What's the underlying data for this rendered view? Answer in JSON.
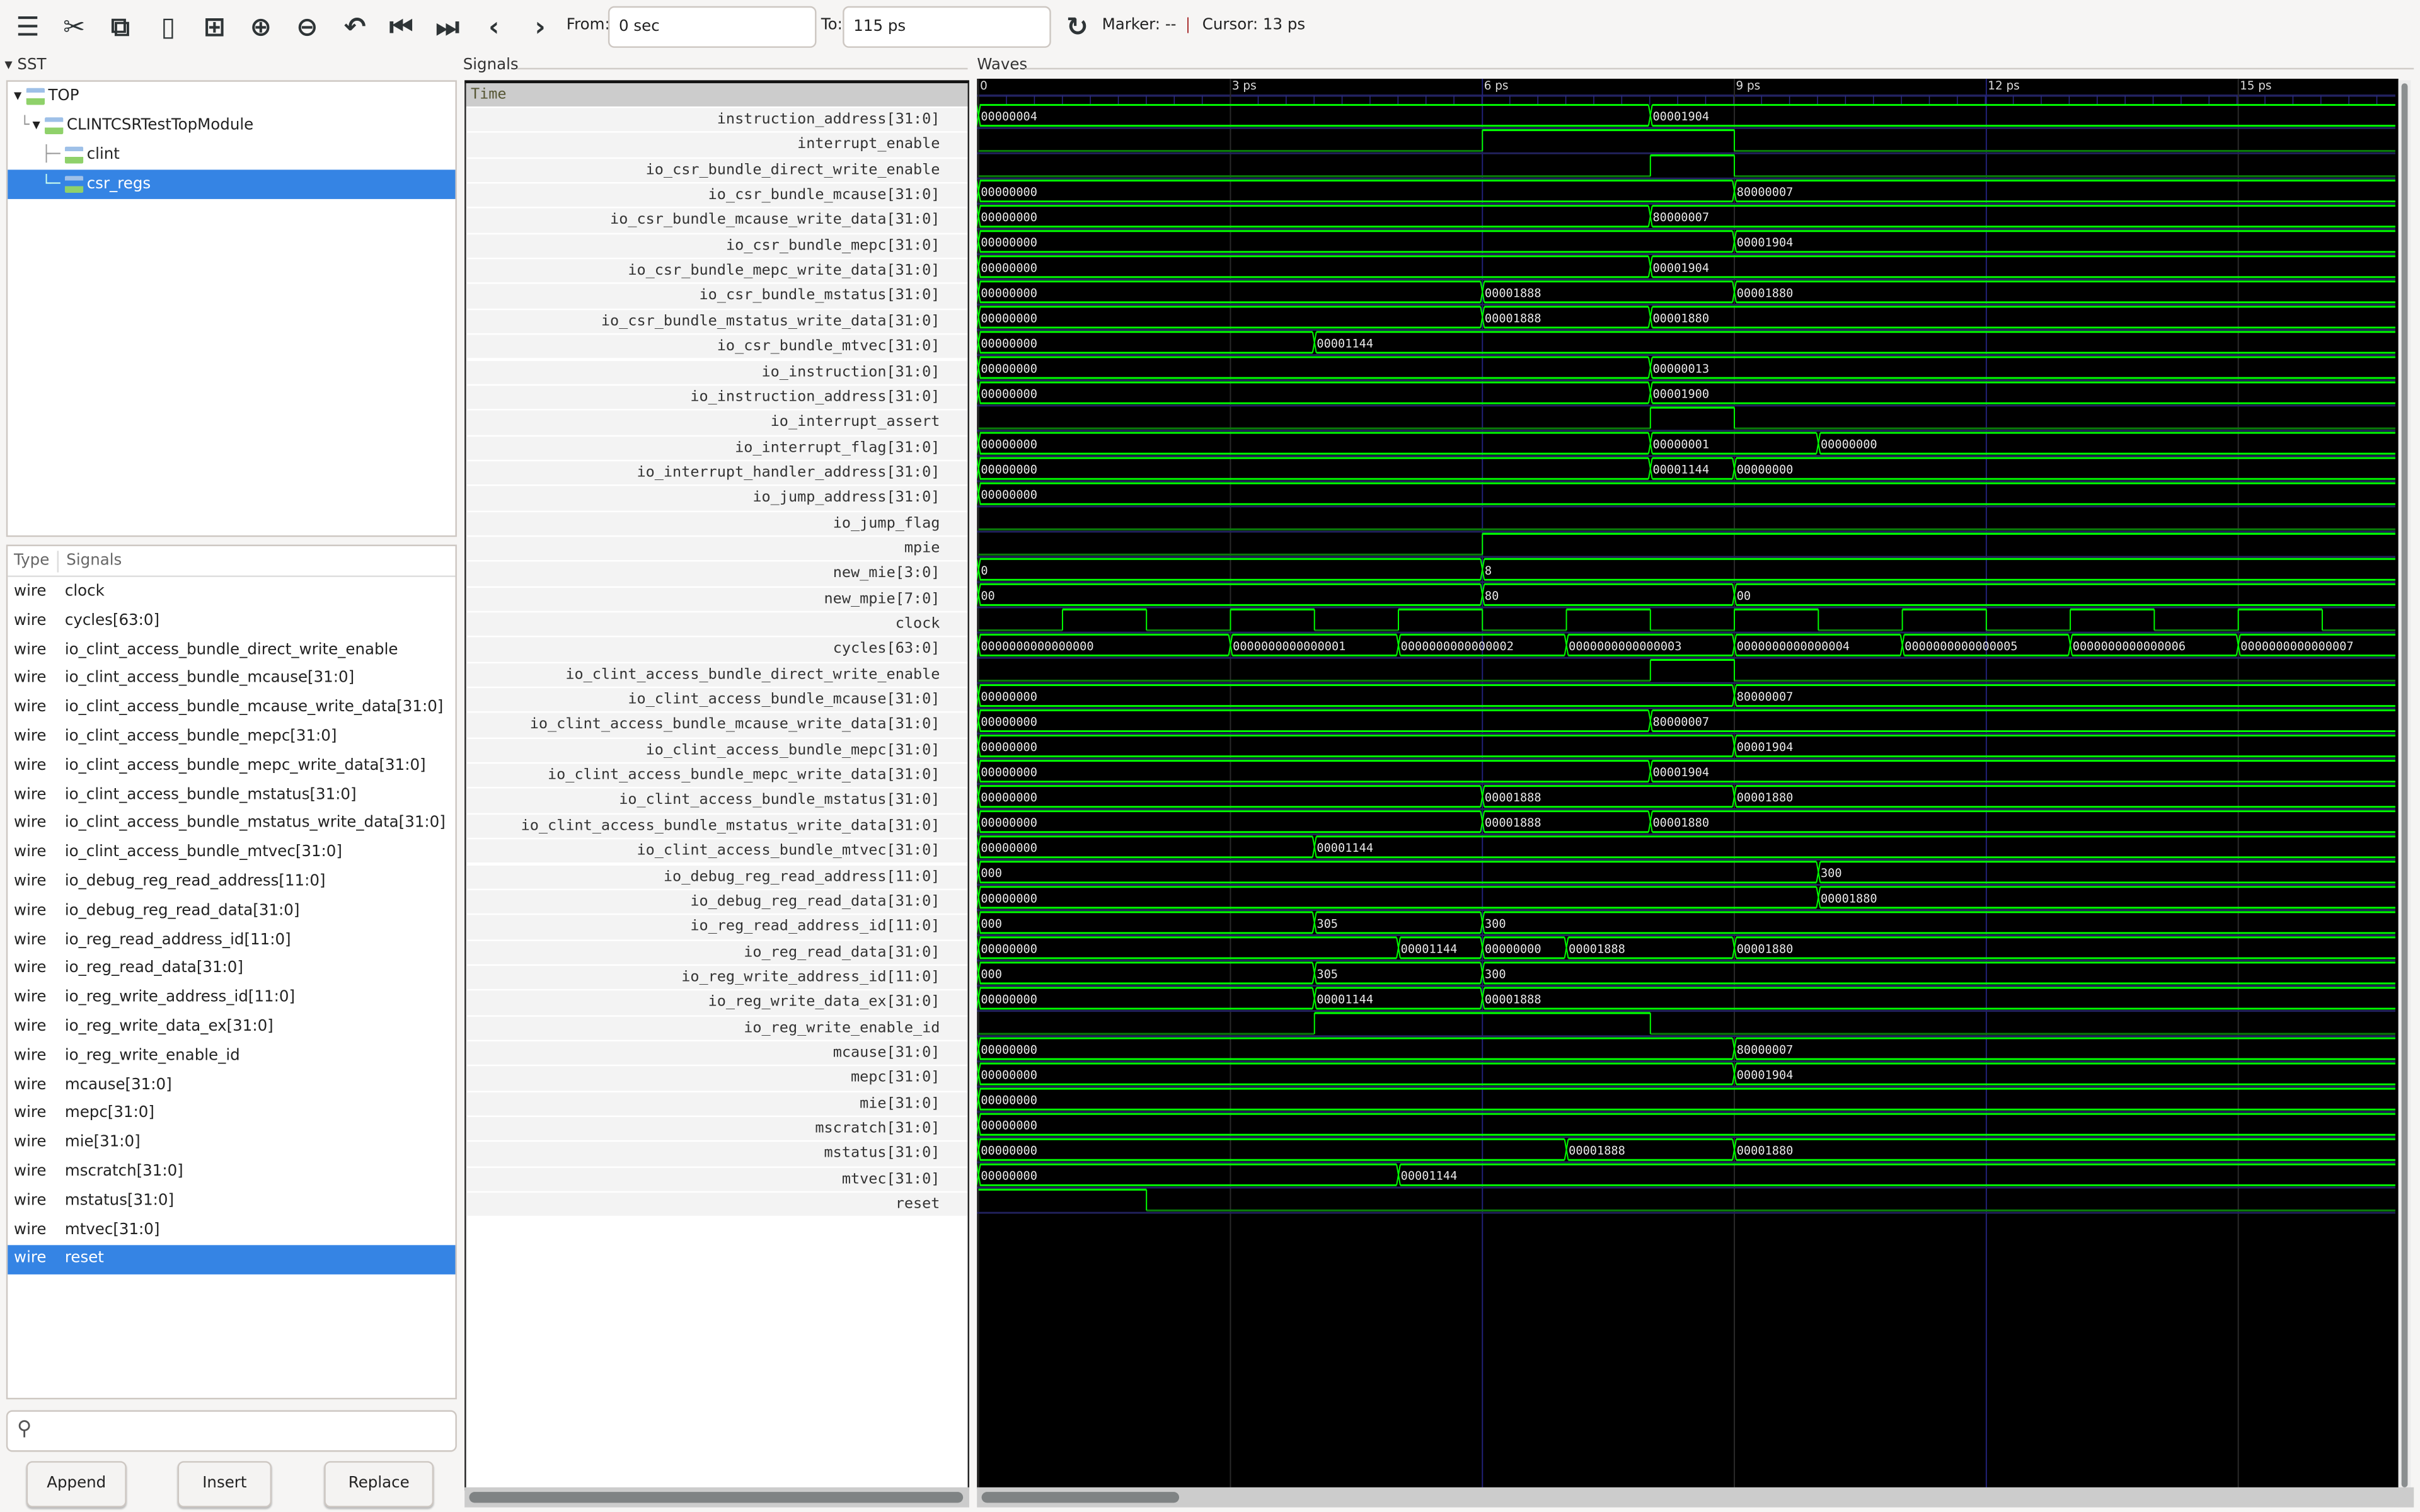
{
  "toolbar": {
    "icons": [
      "menu-icon",
      "cut-icon",
      "copy-icon",
      "paste-icon",
      "zoom-fit-icon",
      "zoom-in-icon",
      "zoom-out-icon",
      "undo-icon",
      "go-to-start-icon",
      "go-to-end-icon",
      "previous-icon",
      "next-icon"
    ],
    "from_label": "From:",
    "from_value": "0 sec",
    "to_label": "To:",
    "to_value": "115 ps",
    "marker": "Marker: --",
    "separator": "|",
    "cursor": "Cursor: 13 ps"
  },
  "sst": {
    "title": "SST",
    "tree": [
      {
        "label": "TOP",
        "level": 0,
        "expanded": true
      },
      {
        "label": "CLINTCSRTestTopModule",
        "level": 1,
        "expanded": true
      },
      {
        "label": "clint",
        "level": 2
      },
      {
        "label": "csr_regs",
        "level": 2,
        "selected": true
      }
    ],
    "list_headers": {
      "type": "Type",
      "signals": "Signals"
    },
    "list": [
      {
        "type": "wire",
        "name": "clock"
      },
      {
        "type": "wire",
        "name": "cycles[63:0]"
      },
      {
        "type": "wire",
        "name": "io_clint_access_bundle_direct_write_enable"
      },
      {
        "type": "wire",
        "name": "io_clint_access_bundle_mcause[31:0]"
      },
      {
        "type": "wire",
        "name": "io_clint_access_bundle_mcause_write_data[31:0]"
      },
      {
        "type": "wire",
        "name": "io_clint_access_bundle_mepc[31:0]"
      },
      {
        "type": "wire",
        "name": "io_clint_access_bundle_mepc_write_data[31:0]"
      },
      {
        "type": "wire",
        "name": "io_clint_access_bundle_mstatus[31:0]"
      },
      {
        "type": "wire",
        "name": "io_clint_access_bundle_mstatus_write_data[31:0]"
      },
      {
        "type": "wire",
        "name": "io_clint_access_bundle_mtvec[31:0]"
      },
      {
        "type": "wire",
        "name": "io_debug_reg_read_address[11:0]"
      },
      {
        "type": "wire",
        "name": "io_debug_reg_read_data[31:0]"
      },
      {
        "type": "wire",
        "name": "io_reg_read_address_id[11:0]"
      },
      {
        "type": "wire",
        "name": "io_reg_read_data[31:0]"
      },
      {
        "type": "wire",
        "name": "io_reg_write_address_id[11:0]"
      },
      {
        "type": "wire",
        "name": "io_reg_write_data_ex[31:0]"
      },
      {
        "type": "wire",
        "name": "io_reg_write_enable_id"
      },
      {
        "type": "wire",
        "name": "mcause[31:0]"
      },
      {
        "type": "wire",
        "name": "mepc[31:0]"
      },
      {
        "type": "wire",
        "name": "mie[31:0]"
      },
      {
        "type": "wire",
        "name": "mscratch[31:0]"
      },
      {
        "type": "wire",
        "name": "mstatus[31:0]"
      },
      {
        "type": "wire",
        "name": "mtvec[31:0]"
      },
      {
        "type": "wire",
        "name": "reset",
        "selected": true
      }
    ],
    "search_placeholder": "",
    "buttons": {
      "append": "Append",
      "insert": "Insert",
      "replace": "Replace"
    }
  },
  "signals_panel": {
    "title": "Signals",
    "time_header": "Time"
  },
  "waves_panel": {
    "title": "Waves",
    "time_unit": "ps",
    "view_start": 0,
    "view_end": 16.87,
    "ticks": [
      {
        "t": 0,
        "label": "0"
      },
      {
        "t": 3,
        "label": "3 ps"
      },
      {
        "t": 6,
        "label": "6 ps"
      },
      {
        "t": 9,
        "label": "9 ps"
      },
      {
        "t": 12,
        "label": "12 ps"
      },
      {
        "t": 15,
        "label": "15 ps"
      }
    ],
    "colors": {
      "background": "#000000",
      "high": "#00ff00",
      "low": "#0a7a0a",
      "bus": "#00ff00",
      "grid": "#1e1e66",
      "row_sep": "#22225e",
      "text": "#e8e8e8"
    }
  },
  "signals": [
    {
      "name": "instruction_address[31:0]",
      "kind": "bus",
      "changes": [
        [
          0,
          "00000004"
        ],
        [
          8,
          "00001904"
        ]
      ]
    },
    {
      "name": "interrupt_enable",
      "kind": "bit",
      "changes": [
        [
          0,
          0
        ],
        [
          6,
          1
        ],
        [
          9,
          0
        ]
      ]
    },
    {
      "name": "io_csr_bundle_direct_write_enable",
      "kind": "bit",
      "changes": [
        [
          0,
          0
        ],
        [
          8,
          1
        ],
        [
          9,
          0
        ]
      ]
    },
    {
      "name": "io_csr_bundle_mcause[31:0]",
      "kind": "bus",
      "changes": [
        [
          0,
          "00000000"
        ],
        [
          9,
          "80000007"
        ]
      ]
    },
    {
      "name": "io_csr_bundle_mcause_write_data[31:0]",
      "kind": "bus",
      "changes": [
        [
          0,
          "00000000"
        ],
        [
          8,
          "80000007"
        ]
      ]
    },
    {
      "name": "io_csr_bundle_mepc[31:0]",
      "kind": "bus",
      "changes": [
        [
          0,
          "00000000"
        ],
        [
          9,
          "00001904"
        ]
      ]
    },
    {
      "name": "io_csr_bundle_mepc_write_data[31:0]",
      "kind": "bus",
      "changes": [
        [
          0,
          "00000000"
        ],
        [
          8,
          "00001904"
        ]
      ]
    },
    {
      "name": "io_csr_bundle_mstatus[31:0]",
      "kind": "bus",
      "changes": [
        [
          0,
          "00000000"
        ],
        [
          6,
          "00001888"
        ],
        [
          9,
          "00001880"
        ]
      ]
    },
    {
      "name": "io_csr_bundle_mstatus_write_data[31:0]",
      "kind": "bus",
      "changes": [
        [
          0,
          "00000000"
        ],
        [
          6,
          "00001888"
        ],
        [
          8,
          "00001880"
        ]
      ]
    },
    {
      "name": "io_csr_bundle_mtvec[31:0]",
      "kind": "bus",
      "changes": [
        [
          0,
          "00000000"
        ],
        [
          4,
          "00001144"
        ]
      ]
    },
    {
      "name": "io_instruction[31:0]",
      "kind": "bus",
      "changes": [
        [
          0,
          "00000000"
        ],
        [
          8,
          "00000013"
        ]
      ]
    },
    {
      "name": "io_instruction_address[31:0]",
      "kind": "bus",
      "changes": [
        [
          0,
          "00000000"
        ],
        [
          8,
          "00001900"
        ]
      ]
    },
    {
      "name": "io_interrupt_assert",
      "kind": "bit",
      "changes": [
        [
          0,
          0
        ],
        [
          8,
          1
        ],
        [
          9,
          0
        ]
      ]
    },
    {
      "name": "io_interrupt_flag[31:0]",
      "kind": "bus",
      "changes": [
        [
          0,
          "00000000"
        ],
        [
          8,
          "00000001"
        ],
        [
          10,
          "00000000"
        ]
      ]
    },
    {
      "name": "io_interrupt_handler_address[31:0]",
      "kind": "bus",
      "changes": [
        [
          0,
          "00000000"
        ],
        [
          8,
          "00001144"
        ],
        [
          9,
          "00000000"
        ]
      ]
    },
    {
      "name": "io_jump_address[31:0]",
      "kind": "bus",
      "changes": [
        [
          0,
          "00000000"
        ]
      ]
    },
    {
      "name": "io_jump_flag",
      "kind": "bit",
      "changes": [
        [
          0,
          0
        ]
      ]
    },
    {
      "name": "mpie",
      "kind": "bit",
      "changes": [
        [
          0,
          0
        ],
        [
          6,
          1
        ]
      ]
    },
    {
      "name": "new_mie[3:0]",
      "kind": "bus",
      "changes": [
        [
          0,
          "0"
        ],
        [
          6,
          "8"
        ]
      ]
    },
    {
      "name": "new_mpie[7:0]",
      "kind": "bus",
      "changes": [
        [
          0,
          "00"
        ],
        [
          6,
          "80"
        ],
        [
          9,
          "00"
        ]
      ]
    },
    {
      "name": "clock",
      "kind": "bit",
      "changes": [
        [
          0,
          0
        ],
        [
          1,
          1
        ],
        [
          2,
          0
        ],
        [
          3,
          1
        ],
        [
          4,
          0
        ],
        [
          5,
          1
        ],
        [
          6,
          0
        ],
        [
          7,
          1
        ],
        [
          8,
          0
        ],
        [
          9,
          1
        ],
        [
          10,
          0
        ],
        [
          11,
          1
        ],
        [
          12,
          0
        ],
        [
          13,
          1
        ],
        [
          14,
          0
        ],
        [
          15,
          1
        ],
        [
          16,
          0
        ]
      ]
    },
    {
      "name": "cycles[63:0]",
      "kind": "bus",
      "changes": [
        [
          0,
          "0000000000000000"
        ],
        [
          3,
          "0000000000000001"
        ],
        [
          5,
          "0000000000000002"
        ],
        [
          7,
          "0000000000000003"
        ],
        [
          9,
          "0000000000000004"
        ],
        [
          11,
          "0000000000000005"
        ],
        [
          13,
          "0000000000000006"
        ],
        [
          15,
          "0000000000000007"
        ]
      ]
    },
    {
      "name": "io_clint_access_bundle_direct_write_enable",
      "kind": "bit",
      "changes": [
        [
          0,
          0
        ],
        [
          8,
          1
        ],
        [
          9,
          0
        ]
      ]
    },
    {
      "name": "io_clint_access_bundle_mcause[31:0]",
      "kind": "bus",
      "changes": [
        [
          0,
          "00000000"
        ],
        [
          9,
          "80000007"
        ]
      ]
    },
    {
      "name": "io_clint_access_bundle_mcause_write_data[31:0]",
      "kind": "bus",
      "changes": [
        [
          0,
          "00000000"
        ],
        [
          8,
          "80000007"
        ]
      ]
    },
    {
      "name": "io_clint_access_bundle_mepc[31:0]",
      "kind": "bus",
      "changes": [
        [
          0,
          "00000000"
        ],
        [
          9,
          "00001904"
        ]
      ]
    },
    {
      "name": "io_clint_access_bundle_mepc_write_data[31:0]",
      "kind": "bus",
      "changes": [
        [
          0,
          "00000000"
        ],
        [
          8,
          "00001904"
        ]
      ]
    },
    {
      "name": "io_clint_access_bundle_mstatus[31:0]",
      "kind": "bus",
      "changes": [
        [
          0,
          "00000000"
        ],
        [
          6,
          "00001888"
        ],
        [
          9,
          "00001880"
        ]
      ]
    },
    {
      "name": "io_clint_access_bundle_mstatus_write_data[31:0]",
      "kind": "bus",
      "changes": [
        [
          0,
          "00000000"
        ],
        [
          6,
          "00001888"
        ],
        [
          8,
          "00001880"
        ]
      ]
    },
    {
      "name": "io_clint_access_bundle_mtvec[31:0]",
      "kind": "bus",
      "changes": [
        [
          0,
          "00000000"
        ],
        [
          4,
          "00001144"
        ]
      ]
    },
    {
      "name": "io_debug_reg_read_address[11:0]",
      "kind": "bus",
      "changes": [
        [
          0,
          "000"
        ],
        [
          10,
          "300"
        ]
      ]
    },
    {
      "name": "io_debug_reg_read_data[31:0]",
      "kind": "bus",
      "changes": [
        [
          0,
          "00000000"
        ],
        [
          10,
          "00001880"
        ]
      ]
    },
    {
      "name": "io_reg_read_address_id[11:0]",
      "kind": "bus",
      "changes": [
        [
          0,
          "000"
        ],
        [
          4,
          "305"
        ],
        [
          6,
          "300"
        ]
      ]
    },
    {
      "name": "io_reg_read_data[31:0]",
      "kind": "bus",
      "changes": [
        [
          0,
          "00000000"
        ],
        [
          5,
          "00001144"
        ],
        [
          6,
          "00000000"
        ],
        [
          7,
          "00001888"
        ],
        [
          9,
          "00001880"
        ]
      ]
    },
    {
      "name": "io_reg_write_address_id[11:0]",
      "kind": "bus",
      "changes": [
        [
          0,
          "000"
        ],
        [
          4,
          "305"
        ],
        [
          6,
          "300"
        ]
      ]
    },
    {
      "name": "io_reg_write_data_ex[31:0]",
      "kind": "bus",
      "changes": [
        [
          0,
          "00000000"
        ],
        [
          4,
          "00001144"
        ],
        [
          6,
          "00001888"
        ]
      ]
    },
    {
      "name": "io_reg_write_enable_id",
      "kind": "bit",
      "changes": [
        [
          0,
          0
        ],
        [
          4,
          1
        ],
        [
          8,
          0
        ]
      ]
    },
    {
      "name": "mcause[31:0]",
      "kind": "bus",
      "changes": [
        [
          0,
          "00000000"
        ],
        [
          9,
          "80000007"
        ]
      ]
    },
    {
      "name": "mepc[31:0]",
      "kind": "bus",
      "changes": [
        [
          0,
          "00000000"
        ],
        [
          9,
          "00001904"
        ]
      ]
    },
    {
      "name": "mie[31:0]",
      "kind": "bus",
      "changes": [
        [
          0,
          "00000000"
        ]
      ]
    },
    {
      "name": "mscratch[31:0]",
      "kind": "bus",
      "changes": [
        [
          0,
          "00000000"
        ]
      ]
    },
    {
      "name": "mstatus[31:0]",
      "kind": "bus",
      "changes": [
        [
          0,
          "00000000"
        ],
        [
          7,
          "00001888"
        ],
        [
          9,
          "00001880"
        ]
      ]
    },
    {
      "name": "mtvec[31:0]",
      "kind": "bus",
      "changes": [
        [
          0,
          "00000000"
        ],
        [
          5,
          "00001144"
        ]
      ]
    },
    {
      "name": "reset",
      "kind": "bit",
      "changes": [
        [
          0,
          1
        ],
        [
          2,
          0
        ]
      ]
    }
  ]
}
